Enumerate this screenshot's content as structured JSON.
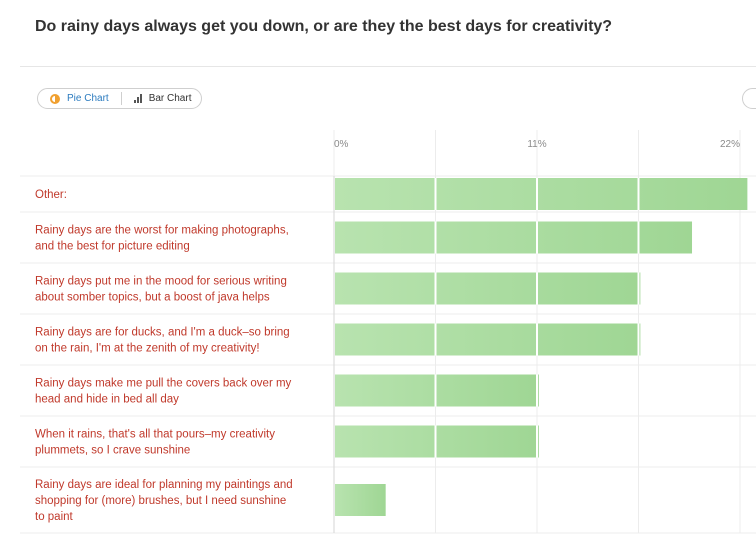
{
  "question": "Do rainy days always get you down, or are they the best days for creativity?",
  "toggle": {
    "pie_label": "Pie Chart",
    "bar_label": "Bar Chart",
    "pie_icon": "pie-chart-icon",
    "bar_icon": "bar-chart-icon"
  },
  "colors": {
    "bar": "#b8e3af",
    "bar_dark": "#9fd694",
    "label": "#c0392b",
    "grid": "#ececec",
    "toggle_active": "#2b7bbf"
  },
  "chart_data": {
    "type": "bar",
    "orientation": "horizontal",
    "x_ticks": [
      "0%",
      "11%",
      "22%"
    ],
    "xlim": [
      0,
      22
    ],
    "categories": [
      [
        "Other:"
      ],
      [
        "Rainy days are the worst for making photographs,",
        "and the best for picture editing"
      ],
      [
        "Rainy days put me in the mood for serious writing",
        "about somber topics, but a boost of java helps"
      ],
      [
        "Rainy days are for ducks, and I'm a duck–so bring",
        "on the rain, I'm at the zenith of my creativity!"
      ],
      [
        "Rainy days make me pull the covers back over my",
        "head and hide in bed all day"
      ],
      [
        "When it rains, that's all that pours–my creativity",
        "plummets, so I crave sunshine"
      ],
      [
        "Rainy days are ideal for planning my paintings and",
        "shopping for (more) brushes, but I need sunshine",
        "to paint"
      ]
    ],
    "values": [
      22.4,
      19.4,
      16.6,
      16.6,
      11.1,
      11.1,
      2.8
    ]
  }
}
